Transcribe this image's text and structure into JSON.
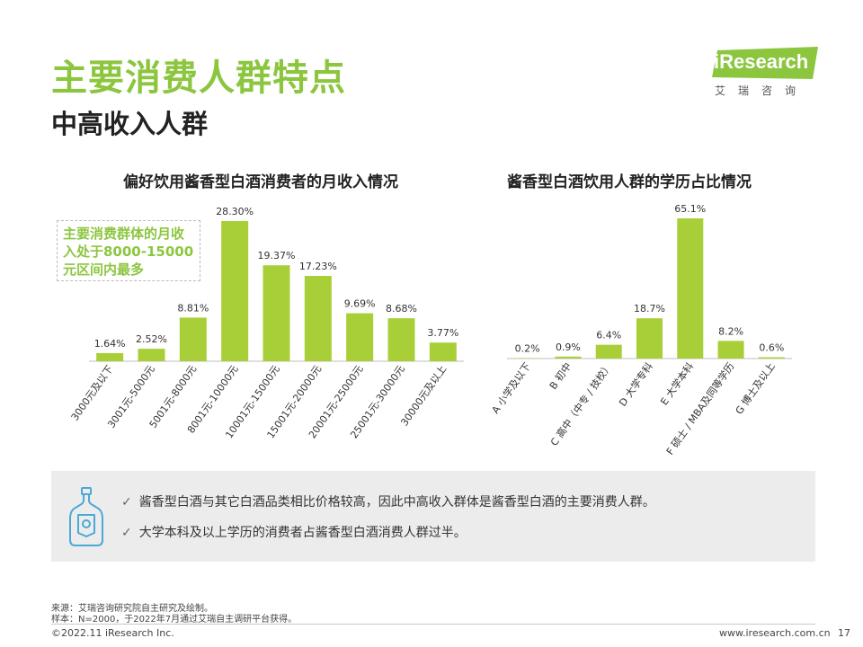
{
  "header": {
    "title": "主要消费人群特点",
    "subtitle": "中高收入人群"
  },
  "logo": {
    "brand": "iResearch",
    "sub": "艾瑞咨询"
  },
  "colors": {
    "accent": "#8cc63f",
    "bar": "#a8cf38"
  },
  "chart_data": [
    {
      "type": "bar",
      "title": "偏好饮用酱香型白酒消费者的月收入情况",
      "categories": [
        "3000元及以下",
        "3001元-5000元",
        "5001元-8000元",
        "8001元-10000元",
        "10001元-15000元",
        "15001元-20000元",
        "20001元-25000元",
        "25001元-30000元",
        "30000元及以上"
      ],
      "values": [
        1.64,
        2.52,
        8.81,
        28.3,
        19.37,
        17.23,
        9.69,
        8.68,
        3.77
      ],
      "labels": [
        "1.64%",
        "2.52%",
        "8.81%",
        "28.30%",
        "19.37%",
        "17.23%",
        "9.69%",
        "8.68%",
        "3.77%"
      ],
      "ylim": [
        0,
        30
      ],
      "xlabel": "",
      "ylabel": "",
      "annotation": [
        "主要消费群体的月收",
        "入处于8000-15000",
        "元区间内最多"
      ]
    },
    {
      "type": "bar",
      "title": "酱香型白酒饮用人群的学历占比情况",
      "categories": [
        "A 小学及以下",
        "B 初中",
        "C 高中（中专 / 技校）",
        "D 大学专科",
        "E 大学本科",
        "F 硕士 / MBA及同等学历",
        "G 博士及以上"
      ],
      "values": [
        0.2,
        0.9,
        6.4,
        18.7,
        65.1,
        8.2,
        0.6
      ],
      "labels": [
        "0.2%",
        "0.9%",
        "6.4%",
        "18.7%",
        "65.1%",
        "8.2%",
        "0.6%"
      ],
      "ylim": [
        0,
        70
      ],
      "xlabel": "",
      "ylabel": ""
    }
  ],
  "summary": {
    "icon": "baijiu-bottle-icon",
    "check": "✓",
    "points": [
      "酱香型白酒与其它白酒品类相比价格较高，因此中高收入群体是酱香型白酒的主要消费人群。",
      "大学本科及以上学历的消费者占酱香型白酒消费人群过半。"
    ]
  },
  "notes": {
    "source": "来源：艾瑞咨询研究院自主研究及绘制。",
    "sample": "样本：N=2000，于2022年7月通过艾瑞自主调研平台获得。"
  },
  "footer": {
    "copyright": "©2022.11 iResearch Inc.",
    "website": "www.iresearch.com.cn",
    "page": "17"
  }
}
